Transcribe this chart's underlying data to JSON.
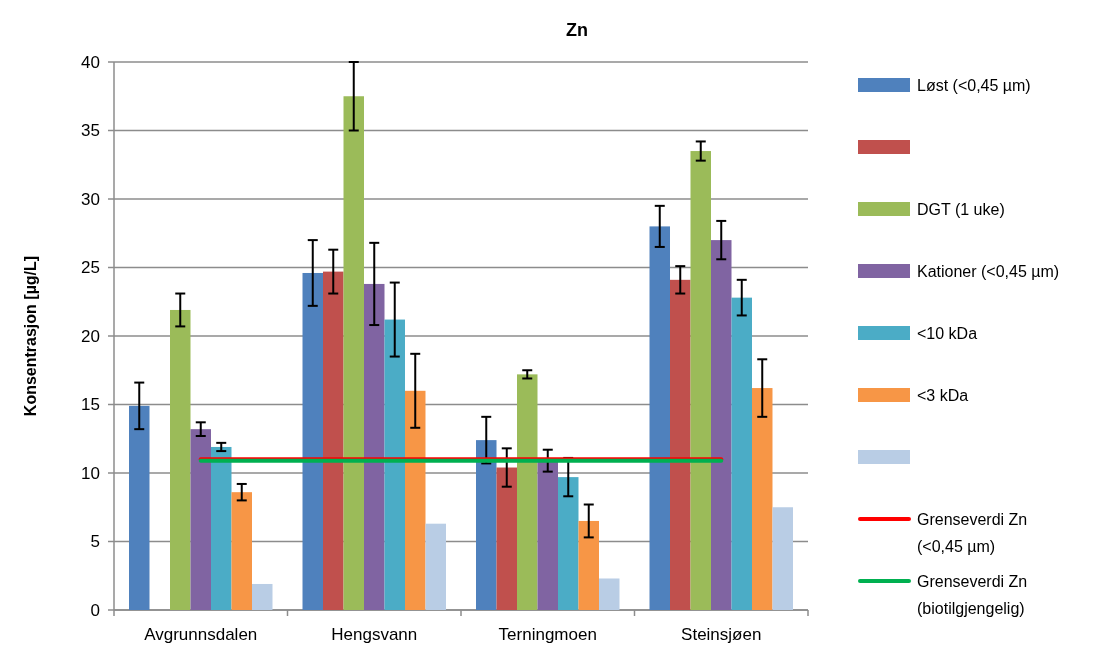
{
  "chart_data": {
    "type": "bar",
    "title": "Zn",
    "ylabel": "Konsentrasjon [µg/L]",
    "categories": [
      "Avgrunnsdalen",
      "Hengsvann",
      "Terningmoen",
      "Steinsjøen"
    ],
    "series": [
      {
        "name": "Løst (<0,45 µm)",
        "color": "#4f81bd",
        "values": [
          14.9,
          24.6,
          12.4,
          28.0
        ],
        "errors": [
          1.7,
          2.4,
          1.7,
          1.5
        ]
      },
      {
        "color": "#c0504d",
        "values": [
          null,
          24.7,
          10.4,
          24.1
        ],
        "errors": [
          null,
          1.6,
          1.4,
          1.0
        ]
      },
      {
        "name": "DGT (1 uke)",
        "color": "#9bbb59",
        "values": [
          21.9,
          37.5,
          17.2,
          33.5
        ],
        "errors": [
          1.2,
          2.5,
          0.3,
          0.7
        ]
      },
      {
        "name": "Kationer (<0,45 µm)",
        "color": "#8064a2",
        "values": [
          13.2,
          23.8,
          10.9,
          27.0
        ],
        "errors": [
          0.5,
          3.0,
          0.8,
          1.4
        ]
      },
      {
        "name": "<10 kDa",
        "color": "#4bacc6",
        "values": [
          11.9,
          21.2,
          9.7,
          22.8
        ],
        "errors": [
          0.3,
          2.7,
          1.4,
          1.3
        ]
      },
      {
        "name": "<3 kDa",
        "color": "#f79646",
        "values": [
          8.6,
          16.0,
          6.5,
          16.2
        ],
        "errors": [
          0.6,
          2.7,
          1.2,
          2.1
        ]
      },
      {
        "color": "#b9cde5",
        "values": [
          1.9,
          6.3,
          2.3,
          7.5
        ]
      },
      {
        "name": "Grenseverdi Zn (<0,45 µm)",
        "type": "line",
        "color": "#ff0000",
        "values": [
          11,
          11,
          11,
          11
        ]
      },
      {
        "name": "Grenseverdi Zn (biotilgjengelig)",
        "type": "line",
        "color": "#00b050",
        "values": [
          10.9,
          10.9,
          10.9,
          10.9
        ]
      }
    ],
    "ylim": [
      0,
      40
    ],
    "yticks": [
      0,
      5,
      10,
      15,
      20,
      25,
      30,
      35,
      40
    ],
    "grid": "y",
    "legend": "right"
  }
}
